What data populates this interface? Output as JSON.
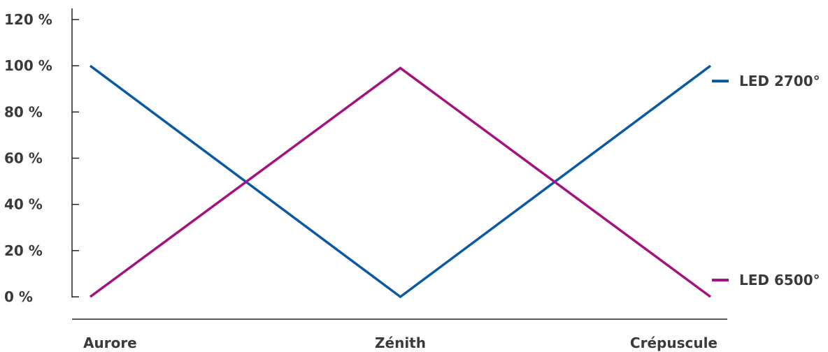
{
  "chart_data": {
    "type": "line",
    "categories": [
      "Aurore",
      "Zénith",
      "Crépuscule"
    ],
    "y_ticks": [
      "0 %",
      "20 %",
      "40 %",
      "60 %",
      "80 %",
      "100 %",
      "120 %"
    ],
    "y_tick_values": [
      0,
      20,
      40,
      60,
      80,
      100,
      120
    ],
    "ylim": [
      0,
      120
    ],
    "grid": false,
    "legend_placement": "right",
    "series": [
      {
        "name": "LED 2700°",
        "values": [
          100,
          0,
          100
        ],
        "color": "#0a5aa3"
      },
      {
        "name": "LED 6500°",
        "values": [
          0,
          99,
          0
        ],
        "color": "#a3127f"
      }
    ],
    "title": "",
    "xlabel": "",
    "ylabel": ""
  }
}
